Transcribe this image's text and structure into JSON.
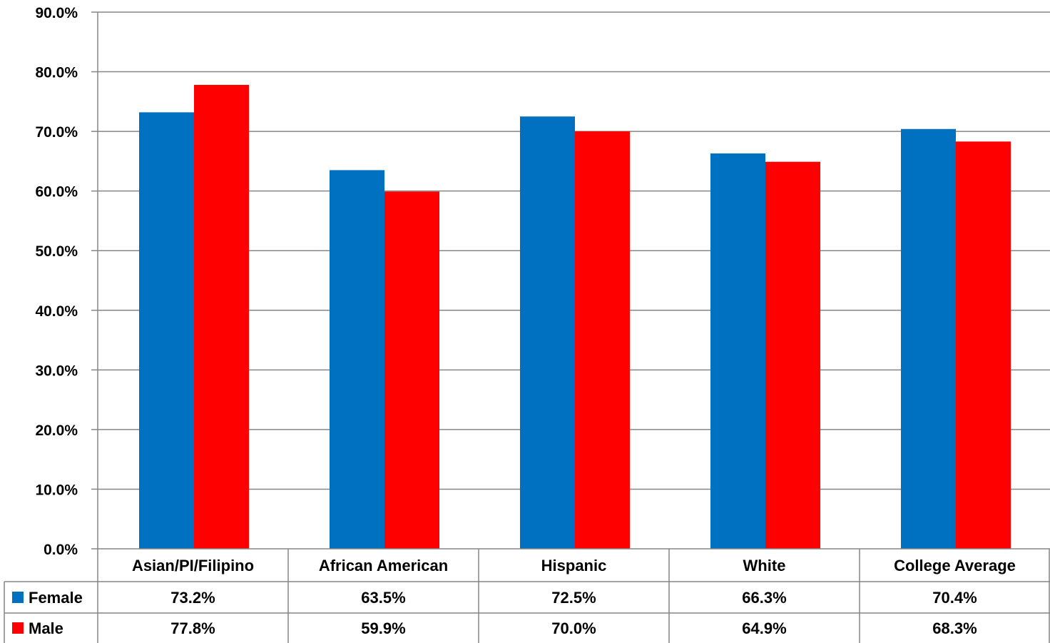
{
  "chart_data": {
    "type": "bar",
    "categories": [
      "Asian/PI/Filipino",
      "African American",
      "Hispanic",
      "White",
      "College Average"
    ],
    "series": [
      {
        "name": "Female",
        "color": "#0070C0",
        "values": [
          73.2,
          63.5,
          72.5,
          66.3,
          70.4
        ],
        "labels": [
          "73.2%",
          "63.5%",
          "72.5%",
          "66.3%",
          "70.4%"
        ]
      },
      {
        "name": "Male",
        "color": "#FF0000",
        "values": [
          77.8,
          59.9,
          70.0,
          64.9,
          68.3
        ],
        "labels": [
          "77.8%",
          "59.9%",
          "70.0%",
          "64.9%",
          "68.3%"
        ]
      }
    ],
    "ylim": [
      0,
      90
    ],
    "yticks": [
      "0.0%",
      "10.0%",
      "20.0%",
      "30.0%",
      "40.0%",
      "50.0%",
      "60.0%",
      "70.0%",
      "80.0%",
      "90.0%"
    ],
    "grid": true,
    "legend": "data-table"
  }
}
